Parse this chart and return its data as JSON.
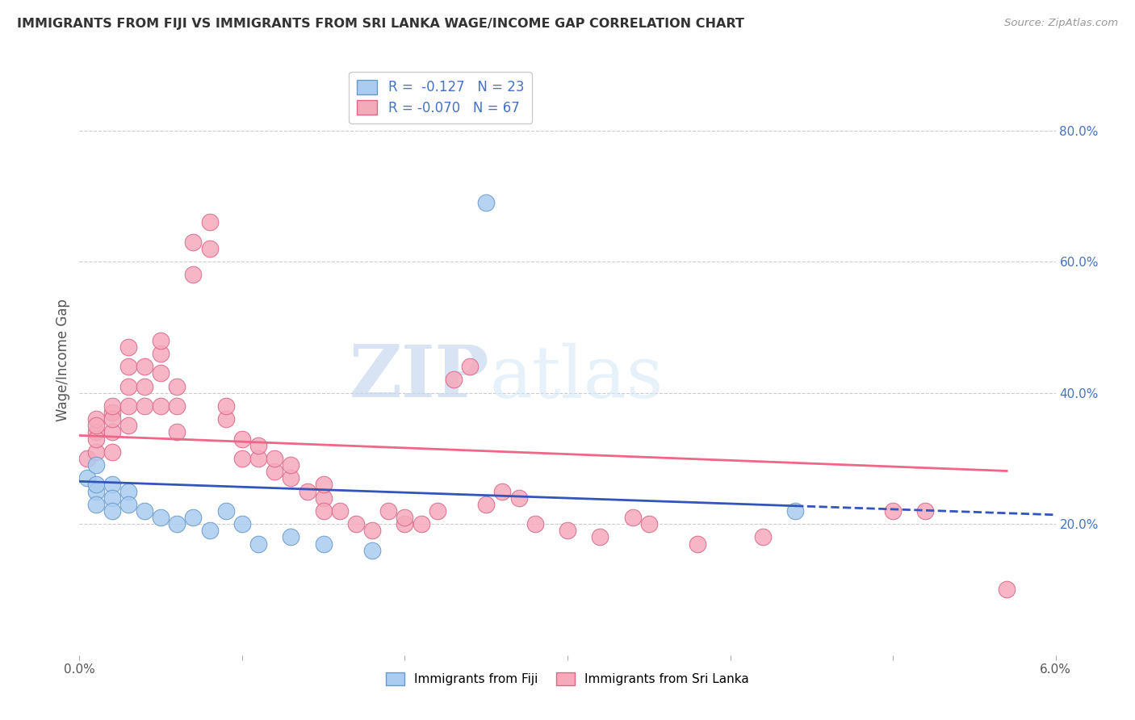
{
  "title": "IMMIGRANTS FROM FIJI VS IMMIGRANTS FROM SRI LANKA WAGE/INCOME GAP CORRELATION CHART",
  "source": "Source: ZipAtlas.com",
  "ylabel": "Wage/Income Gap",
  "right_ytick_vals": [
    0.2,
    0.4,
    0.6,
    0.8
  ],
  "right_ytick_labels": [
    "20.0%",
    "40.0%",
    "60.0%",
    "80.0%"
  ],
  "fiji_color": "#aaccf0",
  "fiji_edge": "#6699cc",
  "srilanka_color": "#f5aabb",
  "srilanka_edge": "#dd6688",
  "fiji_line_color": "#3355bb",
  "srilanka_line_color": "#ee6688",
  "legend_text_1": "R =  -0.127   N = 23",
  "legend_text_2": "R = -0.070   N = 67",
  "xmin": 0.0,
  "xmax": 0.06,
  "ymin": 0.0,
  "ymax": 0.9,
  "watermark_zip": "ZIP",
  "watermark_atlas": "atlas",
  "fiji_x": [
    0.0005,
    0.001,
    0.001,
    0.001,
    0.001,
    0.002,
    0.002,
    0.002,
    0.003,
    0.003,
    0.004,
    0.005,
    0.006,
    0.007,
    0.008,
    0.009,
    0.01,
    0.011,
    0.013,
    0.015,
    0.018,
    0.044,
    0.025
  ],
  "fiji_y": [
    0.27,
    0.29,
    0.25,
    0.23,
    0.26,
    0.26,
    0.24,
    0.22,
    0.25,
    0.23,
    0.22,
    0.21,
    0.2,
    0.21,
    0.19,
    0.22,
    0.2,
    0.17,
    0.18,
    0.17,
    0.16,
    0.22,
    0.69
  ],
  "srilanka_x": [
    0.0005,
    0.001,
    0.001,
    0.001,
    0.001,
    0.001,
    0.002,
    0.002,
    0.002,
    0.002,
    0.002,
    0.003,
    0.003,
    0.003,
    0.003,
    0.003,
    0.004,
    0.004,
    0.004,
    0.005,
    0.005,
    0.005,
    0.005,
    0.006,
    0.006,
    0.006,
    0.007,
    0.007,
    0.008,
    0.008,
    0.009,
    0.009,
    0.01,
    0.01,
    0.011,
    0.011,
    0.012,
    0.012,
    0.013,
    0.013,
    0.014,
    0.015,
    0.015,
    0.015,
    0.016,
    0.017,
    0.018,
    0.019,
    0.02,
    0.02,
    0.021,
    0.022,
    0.023,
    0.024,
    0.025,
    0.026,
    0.027,
    0.028,
    0.03,
    0.032,
    0.034,
    0.035,
    0.038,
    0.042,
    0.05,
    0.052,
    0.057
  ],
  "srilanka_y": [
    0.3,
    0.31,
    0.34,
    0.36,
    0.33,
    0.35,
    0.37,
    0.34,
    0.31,
    0.36,
    0.38,
    0.47,
    0.44,
    0.41,
    0.38,
    0.35,
    0.44,
    0.41,
    0.38,
    0.46,
    0.48,
    0.43,
    0.38,
    0.34,
    0.38,
    0.41,
    0.63,
    0.58,
    0.62,
    0.66,
    0.36,
    0.38,
    0.33,
    0.3,
    0.3,
    0.32,
    0.28,
    0.3,
    0.27,
    0.29,
    0.25,
    0.24,
    0.22,
    0.26,
    0.22,
    0.2,
    0.19,
    0.22,
    0.2,
    0.21,
    0.2,
    0.22,
    0.42,
    0.44,
    0.23,
    0.25,
    0.24,
    0.2,
    0.19,
    0.18,
    0.21,
    0.2,
    0.17,
    0.18,
    0.22,
    0.22,
    0.1
  ],
  "fiji_line_x0": 0.0,
  "fiji_line_x_solid_end": 0.044,
  "fiji_line_x_dash_end": 0.06,
  "fiji_line_y0": 0.265,
  "fiji_line_slope": -0.85,
  "srilanka_line_x0": 0.0,
  "srilanka_line_x_end": 0.057,
  "srilanka_line_y0": 0.335,
  "srilanka_line_slope": -0.95,
  "background_color": "#ffffff",
  "grid_color": "#cccccc"
}
